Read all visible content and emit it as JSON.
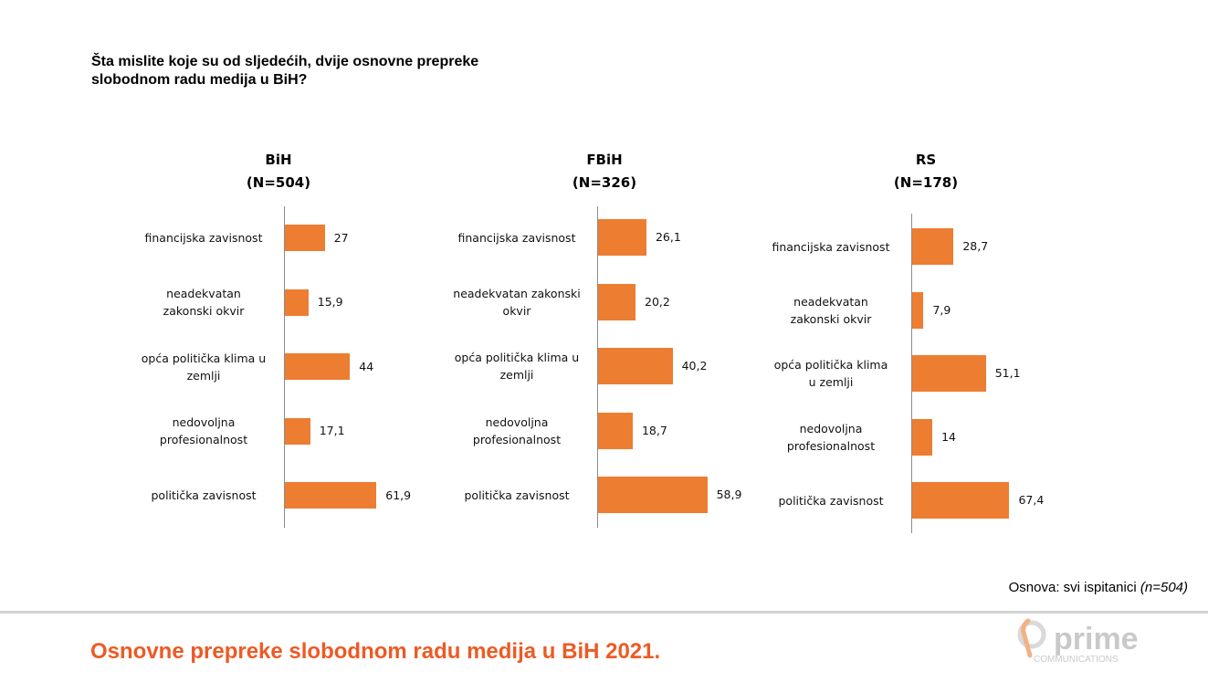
{
  "question": "Šta mislite koje su od sljedećih, dvije osnovne prepreke slobodnom radu medija u BiH?",
  "base_note": {
    "label": "Osnova: svi ispitanici ",
    "italic": "(n=504)"
  },
  "footer_title": "Osnovne prepreke slobodnom radu medija u BiH 2021.",
  "logo": {
    "text": "prime",
    "sub": "COMMUNICATIONS"
  },
  "colors": {
    "bar": "#ed7d31",
    "footer_title": "#ed5a24",
    "logo": "#c9c9c9"
  },
  "chart_data": [
    {
      "type": "bar",
      "orientation": "horizontal",
      "title": [
        "BiH",
        "(N=504)"
      ],
      "categories": [
        "financijska zavisnost",
        "neadekvatan zakonski okvir",
        "opća politička klima u zemlji",
        "nedovoljna profesionalnost",
        "politička zavisnost"
      ],
      "category_lines": [
        [
          "financijska zavisnost"
        ],
        [
          "neadekvatan",
          "zakonski okvir"
        ],
        [
          "opća politička klima u",
          "zemlji"
        ],
        [
          "nedovoljna",
          "profesionalnost"
        ],
        [
          "politička zavisnost"
        ]
      ],
      "values": [
        27,
        15.9,
        44,
        17.1,
        61.9
      ],
      "value_labels": [
        "27",
        "15,9",
        "44",
        "17,1",
        "61,9"
      ]
    },
    {
      "type": "bar",
      "orientation": "horizontal",
      "title": [
        "FBiH",
        "(N=326)"
      ],
      "categories": [
        "financijska zavisnost",
        "neadekvatan zakonski okvir",
        "opća politička klima u zemlji",
        "nedovoljna profesionalnost",
        "politička zavisnost"
      ],
      "category_lines": [
        [
          "financijska zavisnost"
        ],
        [
          "neadekvatan zakonski",
          "okvir"
        ],
        [
          "opća politička klima u",
          "zemlji"
        ],
        [
          "nedovoljna",
          "profesionalnost"
        ],
        [
          "politička zavisnost"
        ]
      ],
      "values": [
        26.1,
        20.2,
        40.2,
        18.7,
        58.9
      ],
      "value_labels": [
        "26,1",
        "20,2",
        "40,2",
        "18,7",
        "58,9"
      ]
    },
    {
      "type": "bar",
      "orientation": "horizontal",
      "title": [
        "RS",
        "(N=178)"
      ],
      "categories": [
        "financijska zavisnost",
        "neadekvatan zakonski okvir",
        "opća politička klima u zemlji",
        "nedovoljna profesionalnost",
        "politička zavisnost"
      ],
      "category_lines": [
        [
          "financijska zavisnost"
        ],
        [
          "neadekvatan",
          "zakonski okvir"
        ],
        [
          "opća politička klima",
          "u zemlji"
        ],
        [
          "nedovoljna",
          "profesionalnost"
        ],
        [
          "politička zavisnost"
        ]
      ],
      "values": [
        28.7,
        7.9,
        51.1,
        14,
        67.4
      ],
      "value_labels": [
        "28,7",
        "7,9",
        "51,1",
        "14",
        "67,4"
      ]
    }
  ]
}
